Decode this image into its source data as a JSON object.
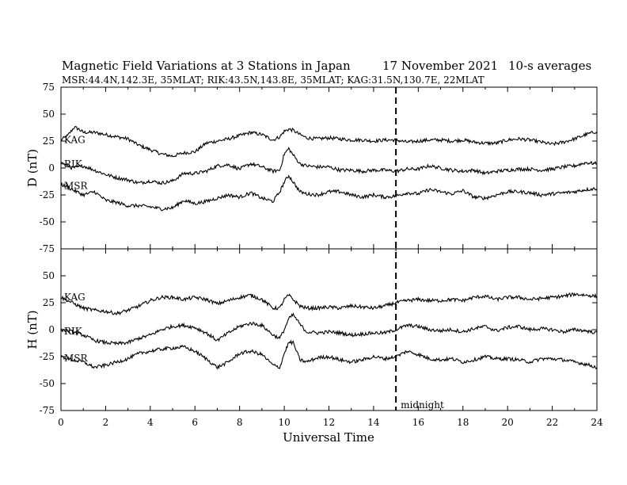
{
  "header": {
    "title": "Magnetic Field Variations at 3 Stations in Japan",
    "date": "17 November 2021",
    "averaging": "10-s averages",
    "stations_line": "MSR:44.4N,142.3E, 35MLAT;  RIK:43.5N,143.8E, 35MLAT;  KAG:31.5N,130.7E, 22MLAT"
  },
  "chart_data": [
    {
      "type": "line",
      "panel": "D",
      "ylabel": "D (nT)",
      "ylim": [
        -75,
        75
      ],
      "yticks": [
        75,
        50,
        25,
        0,
        -25,
        -50,
        -75
      ],
      "xlim": [
        0,
        24
      ],
      "series": [
        {
          "name": "KAG",
          "x": [
            0,
            0.3,
            0.6,
            0.8,
            1,
            1.5,
            2,
            2.5,
            3,
            3.5,
            4,
            4.5,
            5,
            5.5,
            6,
            6.5,
            7,
            7.5,
            8,
            8.5,
            9,
            9.5,
            9.8,
            10,
            10.2,
            10.4,
            10.7,
            11,
            11.5,
            12,
            12.5,
            13,
            13.5,
            14,
            14.5,
            15,
            15.5,
            16,
            16.5,
            17,
            17.5,
            18,
            18.5,
            19,
            19.5,
            20,
            20.5,
            21,
            21.5,
            22,
            22.5,
            23,
            23.5,
            24
          ],
          "values": [
            26,
            30,
            38,
            36,
            33,
            33,
            31,
            29,
            27,
            21,
            17,
            13,
            11,
            14,
            15,
            23,
            25,
            27,
            30,
            33,
            31,
            26,
            29,
            34,
            36,
            35,
            31,
            28,
            27,
            28,
            27,
            26,
            26,
            25,
            26,
            26,
            24,
            25,
            26,
            26,
            25,
            26,
            24,
            23,
            23,
            26,
            27,
            26,
            24,
            22,
            24,
            27,
            31,
            34
          ]
        },
        {
          "name": "RIK",
          "x": [
            0,
            0.5,
            1,
            1.5,
            2,
            2.5,
            3,
            3.5,
            4,
            4.5,
            5,
            5.5,
            6,
            6.5,
            7,
            7.5,
            8,
            8.5,
            9,
            9.5,
            9.8,
            10,
            10.2,
            10.4,
            10.7,
            11,
            11.5,
            12,
            12.5,
            13,
            13.5,
            14,
            14.5,
            15,
            15.5,
            16,
            16.5,
            17,
            17.5,
            18,
            18.5,
            19,
            19.5,
            20,
            20.5,
            21,
            21.5,
            22,
            22.5,
            23,
            23.5,
            24
          ],
          "values": [
            5,
            0,
            2,
            -2,
            -6,
            -9,
            -11,
            -14,
            -12,
            -14,
            -12,
            -5,
            -5,
            -3,
            2,
            3,
            -1,
            4,
            1,
            -3,
            -2,
            13,
            18,
            12,
            4,
            2,
            1,
            1,
            -2,
            -2,
            -3,
            -2,
            -2,
            -3,
            -1,
            -1,
            2,
            0,
            -2,
            -3,
            -2,
            -5,
            -3,
            -2,
            -1,
            -1,
            -2,
            -1,
            1,
            2,
            5,
            4
          ]
        },
        {
          "name": "MSR",
          "x": [
            0,
            0.5,
            1,
            1.5,
            2,
            2.5,
            3,
            3.5,
            4,
            4.5,
            5,
            5.5,
            6,
            6.5,
            7,
            7.5,
            8,
            8.5,
            9,
            9.5,
            9.8,
            10,
            10.2,
            10.4,
            10.7,
            11,
            11.5,
            12,
            12.5,
            13,
            13.5,
            14,
            14.5,
            15,
            15.5,
            16,
            16.5,
            17,
            17.5,
            18,
            18.5,
            19,
            19.5,
            20,
            20.5,
            21,
            21.5,
            22,
            22.5,
            23,
            23.5,
            24
          ],
          "values": [
            -15,
            -20,
            -25,
            -22,
            -30,
            -32,
            -35,
            -35,
            -36,
            -38,
            -37,
            -30,
            -33,
            -31,
            -28,
            -25,
            -27,
            -23,
            -28,
            -31,
            -22,
            -13,
            -7,
            -13,
            -22,
            -24,
            -25,
            -22,
            -22,
            -25,
            -27,
            -25,
            -27,
            -26,
            -23,
            -24,
            -20,
            -22,
            -24,
            -21,
            -27,
            -28,
            -25,
            -22,
            -22,
            -23,
            -25,
            -24,
            -23,
            -22,
            -20,
            -19
          ]
        }
      ],
      "annotations": [
        {
          "x": 15,
          "label": "midnight"
        }
      ]
    },
    {
      "type": "line",
      "panel": "H",
      "xlabel": "Universal Time",
      "ylabel": "H (nT)",
      "ylim": [
        -75,
        75
      ],
      "yticks": [
        75,
        50,
        25,
        0,
        -25,
        -50,
        -75
      ],
      "xlim": [
        0,
        24
      ],
      "xticks": [
        0,
        2,
        4,
        6,
        8,
        10,
        12,
        14,
        16,
        18,
        20,
        22,
        24
      ],
      "series": [
        {
          "name": "KAG",
          "x": [
            0,
            0.5,
            1,
            1.5,
            2,
            2.5,
            3,
            3.5,
            4,
            4.5,
            5,
            5.5,
            6,
            6.5,
            7,
            7.5,
            8,
            8.5,
            9,
            9.5,
            9.8,
            10,
            10.2,
            10.4,
            10.7,
            11,
            11.5,
            12,
            12.5,
            13,
            13.5,
            14,
            14.5,
            15,
            15.5,
            16,
            16.5,
            17,
            17.5,
            18,
            18.5,
            19,
            19.5,
            20,
            20.5,
            21,
            21.5,
            22,
            22.5,
            23,
            23.5,
            24
          ],
          "values": [
            30,
            25,
            20,
            18,
            17,
            15,
            18,
            22,
            27,
            30,
            30,
            28,
            30,
            28,
            24,
            27,
            30,
            32,
            28,
            20,
            20,
            28,
            32,
            28,
            22,
            20,
            20,
            21,
            20,
            22,
            21,
            20,
            22,
            25,
            27,
            28,
            27,
            27,
            28,
            27,
            30,
            31,
            28,
            30,
            30,
            28,
            29,
            30,
            31,
            33,
            32,
            31
          ]
        },
        {
          "name": "RIK",
          "x": [
            0,
            0.5,
            1,
            1.5,
            2,
            2.5,
            3,
            3.5,
            4,
            4.5,
            5,
            5.5,
            6,
            6.5,
            7,
            7.5,
            8,
            8.5,
            9,
            9.5,
            9.8,
            10,
            10.2,
            10.4,
            10.7,
            11,
            11.5,
            12,
            12.5,
            13,
            13.5,
            14,
            14.5,
            15,
            15.5,
            16,
            16.5,
            17,
            17.5,
            18,
            18.5,
            19,
            19.5,
            20,
            20.5,
            21,
            21.5,
            22,
            22.5,
            23,
            23.5,
            24
          ],
          "values": [
            0,
            -2,
            -5,
            -10,
            -12,
            -13,
            -12,
            -8,
            -5,
            0,
            3,
            4,
            2,
            -3,
            -10,
            -3,
            3,
            6,
            4,
            -5,
            -8,
            0,
            10,
            14,
            5,
            -2,
            -3,
            -2,
            -3,
            -5,
            -4,
            -3,
            -3,
            0,
            4,
            3,
            0,
            -1,
            0,
            -2,
            1,
            3,
            -1,
            2,
            3,
            0,
            1,
            0,
            -2,
            0,
            -1,
            -3
          ]
        },
        {
          "name": "MSR",
          "x": [
            0,
            0.5,
            1,
            1.5,
            2,
            2.5,
            3,
            3.5,
            4,
            4.5,
            5,
            5.5,
            6,
            6.5,
            7,
            7.5,
            8,
            8.5,
            9,
            9.5,
            9.8,
            10,
            10.2,
            10.4,
            10.7,
            11,
            11.5,
            12,
            12.5,
            13,
            13.5,
            14,
            14.5,
            15,
            15.5,
            16,
            16.5,
            17,
            17.5,
            18,
            18.5,
            19,
            19.5,
            20,
            20.5,
            21,
            21.5,
            22,
            22.5,
            23,
            23.5,
            24
          ],
          "values": [
            -25,
            -28,
            -30,
            -35,
            -33,
            -30,
            -27,
            -22,
            -20,
            -18,
            -17,
            -16,
            -20,
            -27,
            -35,
            -30,
            -22,
            -20,
            -23,
            -33,
            -35,
            -22,
            -12,
            -12,
            -28,
            -30,
            -26,
            -25,
            -28,
            -30,
            -28,
            -25,
            -27,
            -25,
            -20,
            -23,
            -27,
            -28,
            -27,
            -30,
            -28,
            -25,
            -27,
            -27,
            -28,
            -30,
            -27,
            -27,
            -28,
            -30,
            -32,
            -35
          ]
        }
      ],
      "annotations": [
        {
          "x": 15,
          "label": "midnight"
        }
      ]
    }
  ]
}
